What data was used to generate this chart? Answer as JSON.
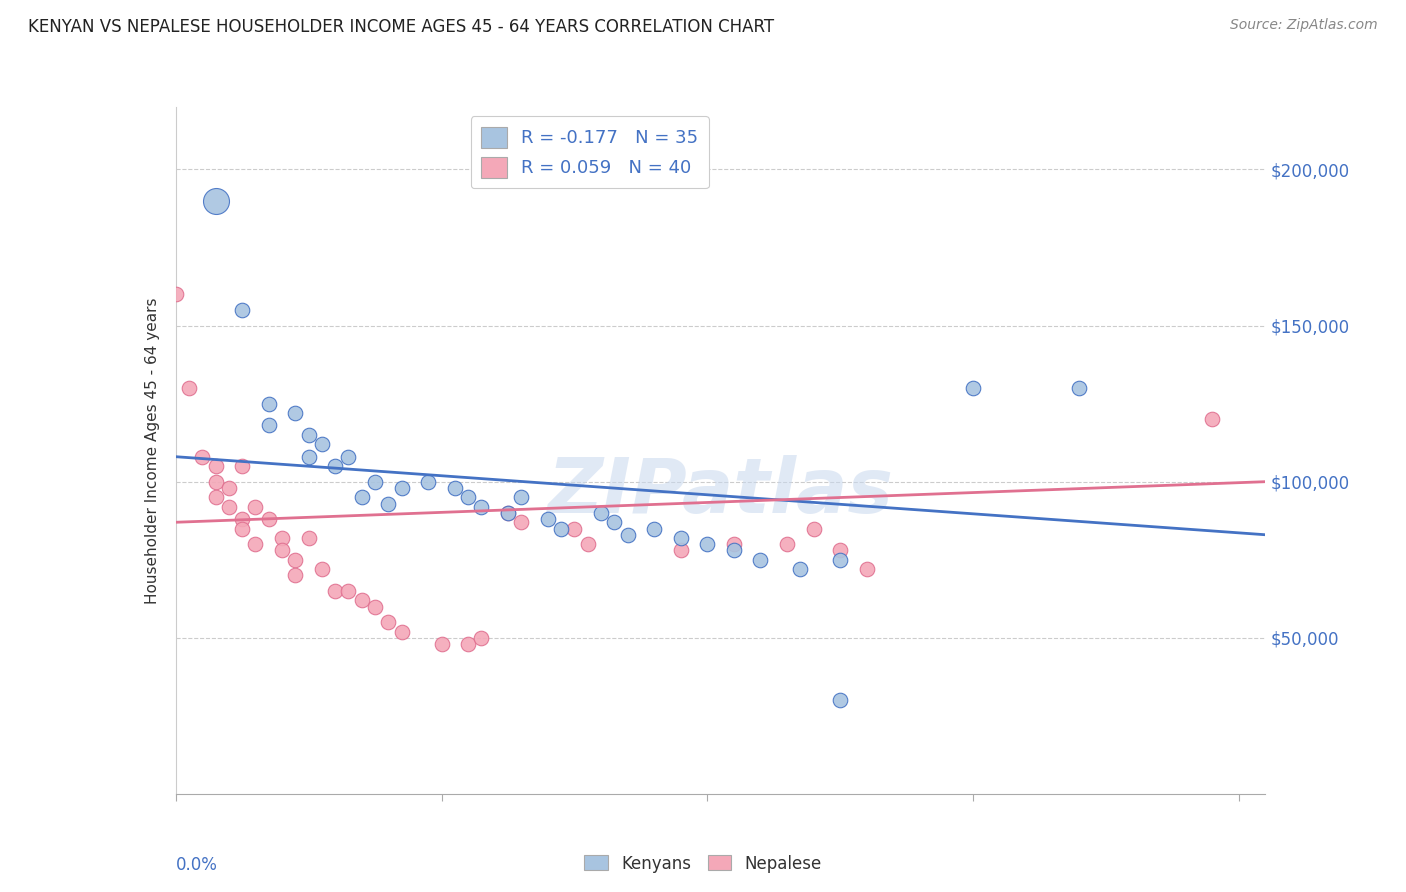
{
  "title": "KENYAN VS NEPALESE HOUSEHOLDER INCOME AGES 45 - 64 YEARS CORRELATION CHART",
  "source": "Source: ZipAtlas.com",
  "ylabel": "Householder Income Ages 45 - 64 years",
  "ytick_labels": [
    "$50,000",
    "$100,000",
    "$150,000",
    "$200,000"
  ],
  "ytick_values": [
    50000,
    100000,
    150000,
    200000
  ],
  "kenyan_color": "#a8c4e0",
  "nepalese_color": "#f4a8b8",
  "kenyan_line_color": "#4472c4",
  "nepalese_line_color": "#e07090",
  "watermark": "ZIPatlas",
  "kenyan_points": [
    [
      0.003,
      190000
    ],
    [
      0.005,
      155000
    ],
    [
      0.007,
      125000
    ],
    [
      0.007,
      118000
    ],
    [
      0.009,
      122000
    ],
    [
      0.01,
      115000
    ],
    [
      0.01,
      108000
    ],
    [
      0.011,
      112000
    ],
    [
      0.012,
      105000
    ],
    [
      0.013,
      108000
    ],
    [
      0.014,
      95000
    ],
    [
      0.015,
      100000
    ],
    [
      0.016,
      93000
    ],
    [
      0.017,
      98000
    ],
    [
      0.019,
      100000
    ],
    [
      0.021,
      98000
    ],
    [
      0.022,
      95000
    ],
    [
      0.023,
      92000
    ],
    [
      0.025,
      90000
    ],
    [
      0.026,
      95000
    ],
    [
      0.028,
      88000
    ],
    [
      0.029,
      85000
    ],
    [
      0.032,
      90000
    ],
    [
      0.033,
      87000
    ],
    [
      0.034,
      83000
    ],
    [
      0.036,
      85000
    ],
    [
      0.038,
      82000
    ],
    [
      0.04,
      80000
    ],
    [
      0.042,
      78000
    ],
    [
      0.044,
      75000
    ],
    [
      0.047,
      72000
    ],
    [
      0.05,
      30000
    ],
    [
      0.05,
      75000
    ],
    [
      0.06,
      130000
    ],
    [
      0.068,
      130000
    ]
  ],
  "kenyan_large_idx": 0,
  "nepalese_points": [
    [
      0.0,
      160000
    ],
    [
      0.001,
      130000
    ],
    [
      0.002,
      108000
    ],
    [
      0.003,
      105000
    ],
    [
      0.003,
      100000
    ],
    [
      0.004,
      98000
    ],
    [
      0.004,
      92000
    ],
    [
      0.005,
      105000
    ],
    [
      0.005,
      88000
    ],
    [
      0.005,
      85000
    ],
    [
      0.006,
      92000
    ],
    [
      0.006,
      80000
    ],
    [
      0.007,
      88000
    ],
    [
      0.008,
      82000
    ],
    [
      0.008,
      78000
    ],
    [
      0.009,
      75000
    ],
    [
      0.009,
      70000
    ],
    [
      0.01,
      82000
    ],
    [
      0.011,
      72000
    ],
    [
      0.012,
      65000
    ],
    [
      0.013,
      65000
    ],
    [
      0.014,
      62000
    ],
    [
      0.015,
      60000
    ],
    [
      0.016,
      55000
    ],
    [
      0.017,
      52000
    ],
    [
      0.02,
      48000
    ],
    [
      0.022,
      48000
    ],
    [
      0.023,
      50000
    ],
    [
      0.025,
      90000
    ],
    [
      0.026,
      87000
    ],
    [
      0.03,
      85000
    ],
    [
      0.031,
      80000
    ],
    [
      0.038,
      78000
    ],
    [
      0.042,
      80000
    ],
    [
      0.046,
      80000
    ],
    [
      0.048,
      85000
    ],
    [
      0.05,
      78000
    ],
    [
      0.052,
      72000
    ],
    [
      0.078,
      120000
    ],
    [
      0.003,
      95000
    ]
  ],
  "xlim": [
    0,
    0.082
  ],
  "ylim": [
    0,
    220000
  ],
  "kenyan_trendline": [
    0.0,
    0.082
  ],
  "kenyan_trend_y": [
    108000,
    83000
  ],
  "nepalese_trendline": [
    0.0,
    0.082
  ],
  "nepalese_trend_y": [
    87000,
    100000
  ],
  "bg_color": "#ffffff",
  "grid_color": "#cccccc",
  "title_fontsize": 12,
  "source_fontsize": 10,
  "ylabel_fontsize": 11,
  "tick_fontsize": 12
}
